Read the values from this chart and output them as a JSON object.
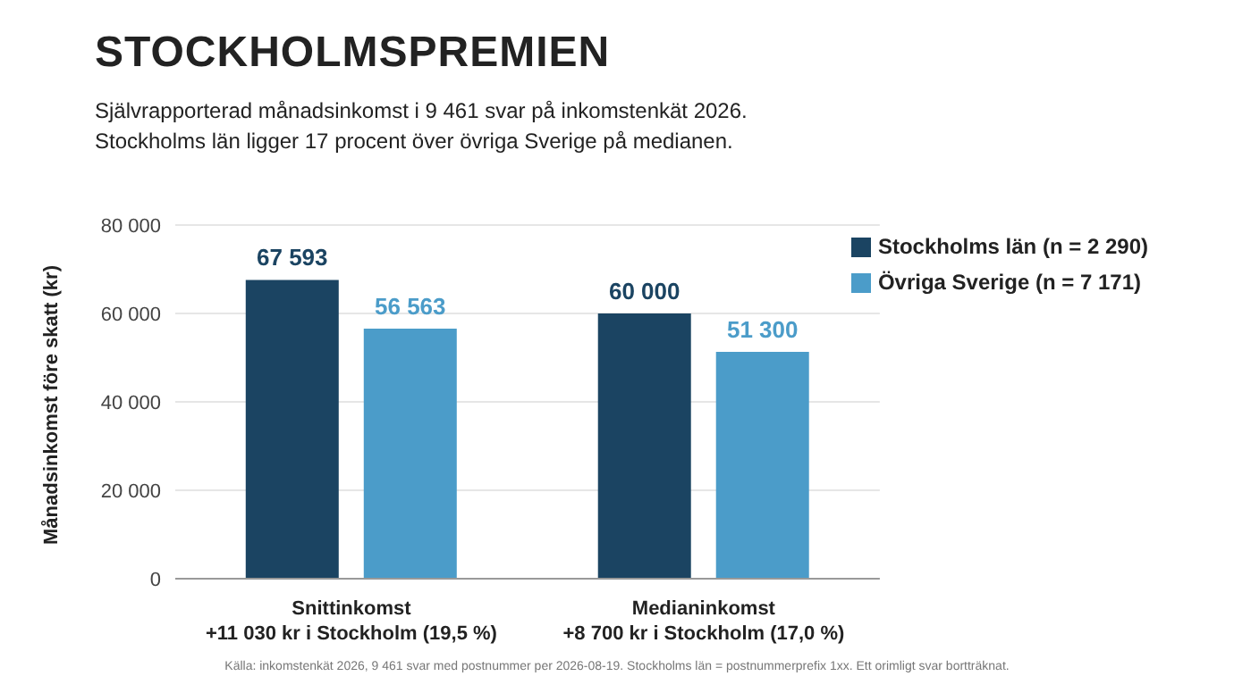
{
  "chart_data": {
    "type": "bar",
    "title": "STOCKHOLMSPREMIEN",
    "subtitle": "Självrapporterad månadsinkomst i 9 461 svar på inkomstenkät 2026.\nStockholms län ligger 17 procent över övriga Sverige på medianen.",
    "ylabel": "Månadsinkomst före skatt (kr)",
    "categories": [
      "Snittinkomst\n+11 030 kr i Stockholm (19,5 %)",
      "Medianinkomst\n+8 700 kr i Stockholm (17,0 %)"
    ],
    "series": [
      {
        "name": "Stockholms län (n = 2 290)",
        "color": "#1b4462",
        "values": [
          67593,
          60000
        ],
        "value_labels": [
          "67 593",
          "60 000"
        ]
      },
      {
        "name": "Övriga Sverige (n = 7 171)",
        "color": "#4b9cc9",
        "values": [
          56563,
          51300
        ],
        "value_labels": [
          "56 563",
          "51 300"
        ]
      }
    ],
    "ylim": [
      0,
      80000
    ],
    "yticks": [
      {
        "value": 0,
        "label": "0"
      },
      {
        "value": 20000,
        "label": "20 000"
      },
      {
        "value": 40000,
        "label": "40 000"
      },
      {
        "value": 60000,
        "label": "60 000"
      },
      {
        "value": 80000,
        "label": "80 000"
      }
    ],
    "grid": "y",
    "legend": "top right",
    "annotations": [
      "Källa: inkomstenkät 2026, 9 461 svar med postnummer per 2026-08-19. Stockholms län = postnummerprefix 1xx. Ett orimligt svar bortträknat."
    ]
  }
}
